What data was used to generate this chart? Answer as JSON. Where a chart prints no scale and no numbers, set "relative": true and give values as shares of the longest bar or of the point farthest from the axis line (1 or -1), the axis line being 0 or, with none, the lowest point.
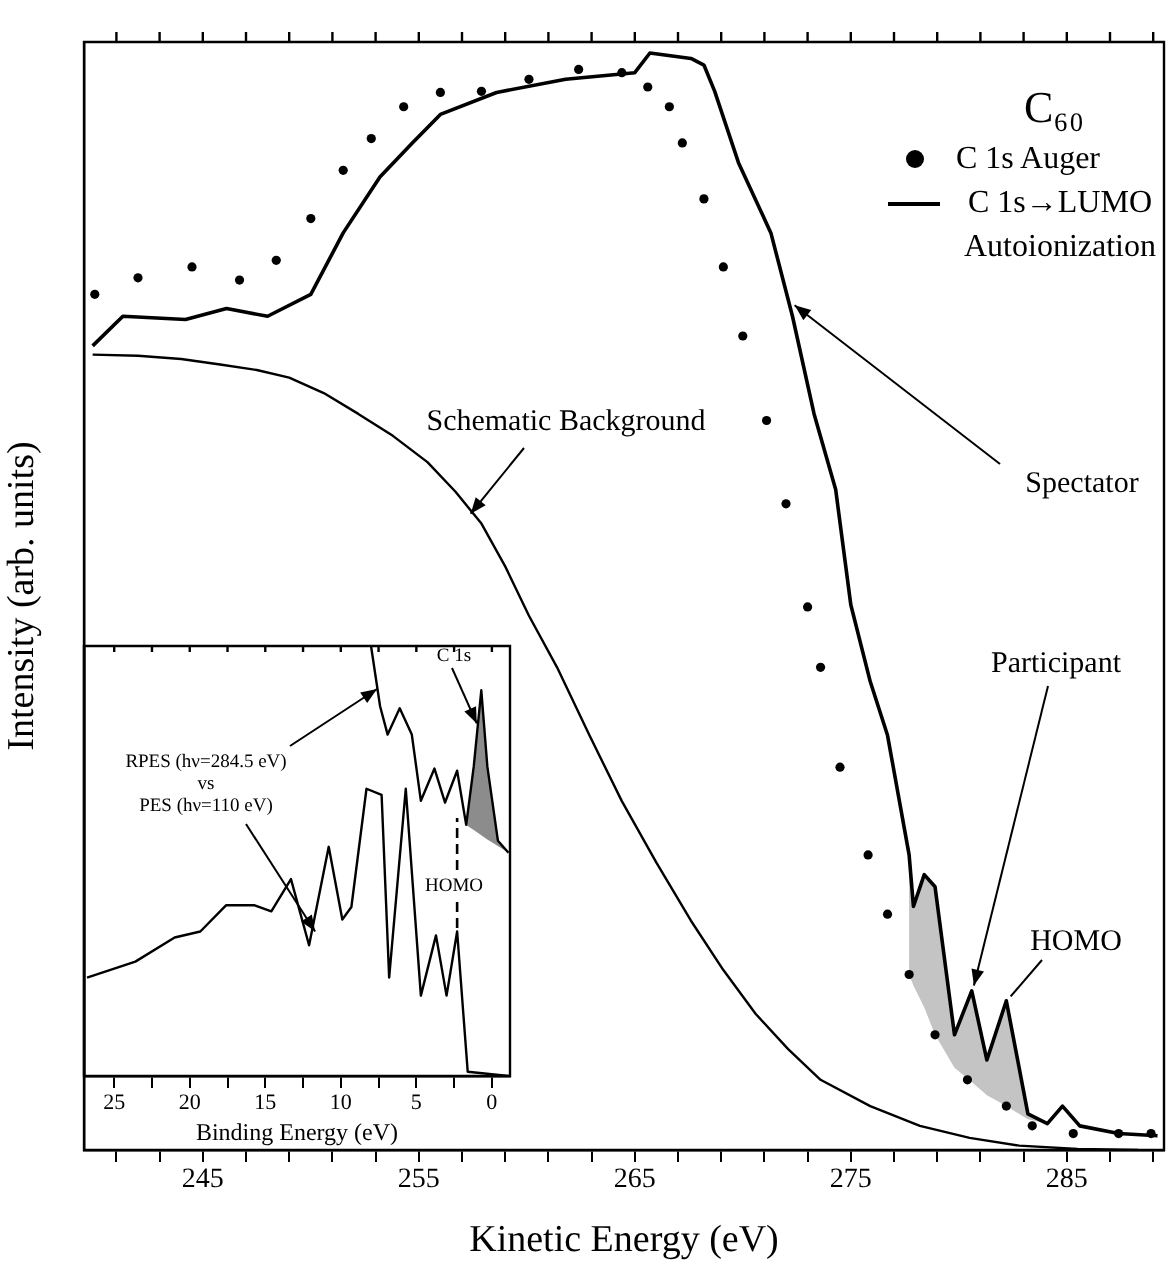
{
  "chart_data": [
    {
      "type": "line",
      "xlabel": "Kinetic Energy (eV)",
      "ylabel": "Intensity (arb. units)",
      "legend_title": "C₆₀",
      "legend": "top right",
      "relative": true,
      "xlim": [
        239.5,
        289.5
      ],
      "xticks": [
        {
          "value": 241,
          "label": null
        },
        {
          "value": 243,
          "label": null
        },
        245,
        {
          "value": 247,
          "label": null
        },
        {
          "value": 249,
          "label": null
        },
        {
          "value": 251,
          "label": null
        },
        {
          "value": 253,
          "label": null
        },
        255,
        {
          "value": 257,
          "label": null
        },
        {
          "value": 259,
          "label": null
        },
        {
          "value": 261,
          "label": null
        },
        {
          "value": 263,
          "label": null
        },
        265,
        {
          "value": 267,
          "label": null
        },
        {
          "value": 269,
          "label": null
        },
        {
          "value": 271,
          "label": null
        },
        {
          "value": 273,
          "label": null
        },
        275,
        {
          "value": 277,
          "label": null
        },
        {
          "value": 279,
          "label": null
        },
        {
          "value": 281,
          "label": null
        },
        {
          "value": 283,
          "label": null
        },
        285,
        {
          "value": 287,
          "label": null
        },
        {
          "value": 289,
          "label": null
        }
      ],
      "series": [
        {
          "name": "C 1s Auger",
          "type": "scatter",
          "marker": "circle",
          "color": "#000000",
          "x": [
            240.0,
            242.0,
            244.5,
            246.7,
            248.4,
            250.0,
            251.5,
            252.8,
            254.3,
            256.0,
            257.9,
            260.1,
            262.4,
            264.4,
            265.6,
            266.6,
            267.2,
            268.2,
            269.1,
            270.0,
            271.1,
            272.0,
            273.0,
            273.6,
            274.5,
            275.8,
            276.7,
            277.7,
            278.9,
            280.4,
            282.2,
            283.4,
            285.3,
            287.4,
            288.9
          ],
          "values": [
            0.78,
            0.795,
            0.805,
            0.793,
            0.811,
            0.849,
            0.893,
            0.922,
            0.951,
            0.964,
            0.965,
            0.976,
            0.985,
            0.982,
            0.969,
            0.951,
            0.918,
            0.867,
            0.805,
            0.742,
            0.665,
            0.589,
            0.495,
            0.44,
            0.349,
            0.269,
            0.215,
            0.16,
            0.105,
            0.064,
            0.04,
            0.022,
            0.015,
            0.015,
            0.015
          ]
        },
        {
          "name": "C 1s→LUMO Autoionization",
          "type": "line",
          "color": "#000000",
          "x": [
            239.9,
            241.3,
            244.2,
            246.1,
            248.0,
            250.0,
            251.5,
            253.2,
            254.7,
            256.0,
            258.6,
            261.8,
            265.0,
            265.7,
            267.6,
            268.2,
            268.7,
            269.8,
            271.3,
            272.3,
            273.3,
            274.3,
            275.0,
            275.9,
            276.7,
            277.7,
            277.9,
            278.4,
            278.9,
            279.8,
            280.6,
            281.3,
            282.2,
            283.2,
            284.1,
            284.8,
            285.6,
            287.4,
            289.2
          ],
          "values": [
            0.733,
            0.76,
            0.757,
            0.767,
            0.76,
            0.78,
            0.836,
            0.887,
            0.918,
            0.944,
            0.964,
            0.976,
            0.982,
            1.0,
            0.995,
            0.989,
            0.965,
            0.9,
            0.836,
            0.76,
            0.671,
            0.602,
            0.497,
            0.427,
            0.378,
            0.269,
            0.222,
            0.251,
            0.24,
            0.105,
            0.145,
            0.082,
            0.136,
            0.033,
            0.024,
            0.04,
            0.022,
            0.015,
            0.013
          ],
          "lower": [
            null,
            null,
            null,
            null,
            null,
            null,
            null,
            null,
            null,
            null,
            null,
            null,
            null,
            null,
            null,
            null,
            null,
            null,
            null,
            null,
            null,
            null,
            null,
            null,
            null,
            0.16,
            0.15,
            0.13,
            0.105,
            0.075,
            0.062,
            0.05,
            0.04,
            0.028,
            0.024,
            null,
            null,
            null,
            null
          ],
          "upper": [
            null,
            null,
            null,
            null,
            null,
            null,
            null,
            null,
            null,
            null,
            null,
            null,
            null,
            null,
            null,
            null,
            null,
            null,
            null,
            null,
            null,
            null,
            null,
            null,
            null,
            0.269,
            0.222,
            0.251,
            0.24,
            0.105,
            0.145,
            0.082,
            0.136,
            0.033,
            0.024,
            null,
            null,
            null,
            null
          ]
        },
        {
          "type": "line",
          "color": "#000000",
          "x": [
            239.9,
            242.0,
            244.0,
            245.8,
            247.5,
            249.0,
            250.6,
            252.2,
            253.8,
            255.4,
            256.7,
            257.9,
            259.0,
            260.1,
            261.4,
            262.9,
            264.4,
            266.0,
            267.6,
            269.1,
            270.6,
            272.1,
            273.6,
            275.9,
            278.2,
            280.5,
            282.8,
            285.5,
            288.3
          ],
          "values": [
            0.725,
            0.724,
            0.721,
            0.716,
            0.711,
            0.704,
            0.69,
            0.671,
            0.651,
            0.627,
            0.6,
            0.571,
            0.532,
            0.487,
            0.44,
            0.378,
            0.318,
            0.262,
            0.209,
            0.164,
            0.124,
            0.092,
            0.064,
            0.04,
            0.022,
            0.011,
            0.004,
            0.001,
            0.0
          ]
        }
      ],
      "annotations": [
        {
          "text": "Schematic Background",
          "x": 257.4,
          "y": 0.58
        },
        {
          "text": "Spectator",
          "x": 272.4,
          "y": 0.77
        },
        {
          "text": "Participant",
          "x": 280.7,
          "y": 0.15
        },
        {
          "text": "HOMO",
          "x": 282.4,
          "y": 0.14
        }
      ]
    },
    {
      "type": "line",
      "xlabel": "Binding Energy (eV)",
      "relative": true,
      "tick_labels": "x",
      "xlim": [
        27,
        -1.2
      ],
      "xticks": [
        25,
        {
          "value": 22.5,
          "label": null
        },
        20,
        {
          "value": 17.5,
          "label": null
        },
        15,
        {
          "value": 12.5,
          "label": null
        },
        10,
        {
          "value": 7.5,
          "label": null
        },
        5,
        {
          "value": 2.5,
          "label": null
        },
        0
      ],
      "series": [
        {
          "color": "#000000",
          "x": [
            8.0,
            7.4,
            6.9,
            6.1,
            5.3,
            4.7,
            3.8,
            3.1,
            2.3,
            1.7,
            1.2,
            0.7,
            0.3,
            -0.4,
            -1.1
          ],
          "values": [
            1.0,
            0.86,
            0.794,
            0.855,
            0.794,
            0.64,
            0.715,
            0.636,
            0.71,
            0.584,
            0.72,
            0.897,
            0.72,
            0.547,
            0.519
          ],
          "lower": [
            null,
            null,
            null,
            null,
            null,
            null,
            null,
            null,
            null,
            0.584,
            0.572,
            0.56,
            0.55,
            0.535,
            0.519
          ],
          "upper": [
            null,
            null,
            null,
            null,
            null,
            null,
            null,
            null,
            null,
            0.584,
            0.72,
            0.897,
            0.72,
            0.547,
            0.519
          ]
        },
        {
          "color": "#000000",
          "x": [
            26.8,
            23.6,
            21.0,
            19.3,
            17.6,
            15.7,
            14.6,
            13.3,
            12.1,
            10.8,
            9.9,
            9.3,
            8.3,
            7.3,
            6.8,
            5.7,
            4.7,
            3.7,
            3.0,
            2.3,
            1.6,
            -1.1
          ],
          "values": [
            0.229,
            0.266,
            0.322,
            0.336,
            0.397,
            0.397,
            0.383,
            0.458,
            0.304,
            0.533,
            0.364,
            0.393,
            0.668,
            0.654,
            0.229,
            0.668,
            0.187,
            0.327,
            0.187,
            0.336,
            0.01,
            0.0
          ]
        }
      ],
      "annotations": [
        {
          "text": "C 1s",
          "x": 1.0,
          "y": 0.82
        },
        {
          "text": "RPES (hν=284.5 eV)",
          "x": 7.6,
          "y": 0.9
        },
        "vs",
        {
          "text": "PES (hν=110 eV)",
          "x": 11.7,
          "y": 0.336
        },
        {
          "text": "HOMO",
          "x": 2.3,
          "y": 0.336
        }
      ]
    }
  ]
}
